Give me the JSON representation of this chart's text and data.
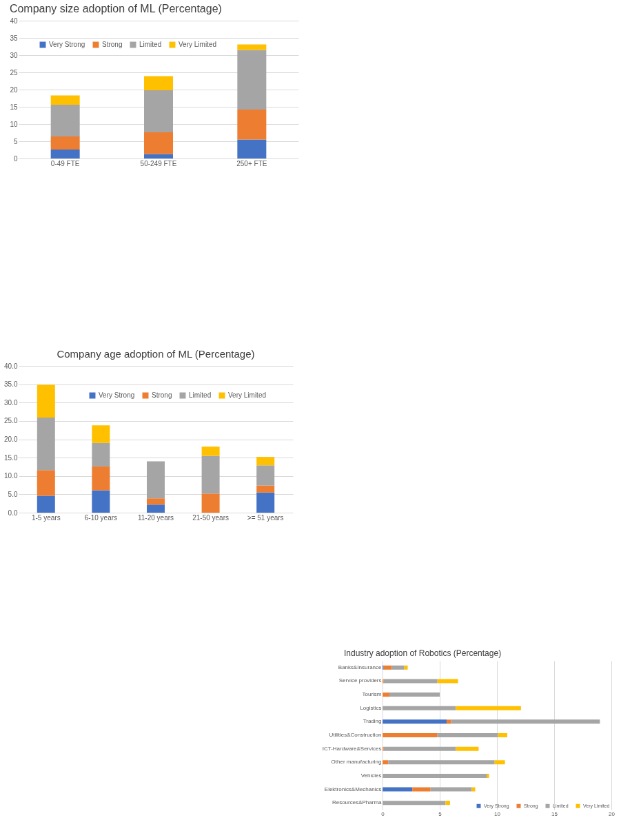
{
  "chart_data": [
    {
      "type": "bar",
      "title": "Company size adoption of ML (Percentage)",
      "categories": [
        "0-49 FTE",
        "50-249 FTE",
        "250+ FTE"
      ],
      "stacked": true,
      "series": [
        {
          "name": "Very Strong",
          "color": "#4472c4",
          "values": [
            2.6,
            1.3,
            5.5
          ]
        },
        {
          "name": "Strong",
          "color": "#ed7d31",
          "values": [
            3.8,
            6.3,
            8.7
          ]
        },
        {
          "name": "Limited",
          "color": "#a5a5a5",
          "values": [
            9.2,
            12.2,
            17.3
          ]
        },
        {
          "name": "Very Limited",
          "color": "#ffc000",
          "values": [
            2.7,
            4.1,
            1.6
          ]
        }
      ],
      "ylim": [
        0,
        40
      ],
      "yticks": [
        0,
        5,
        10,
        15,
        20,
        25,
        30,
        35,
        40
      ],
      "grid": "y",
      "legend": "top left"
    },
    {
      "type": "bar",
      "title": "Company age adoption of ML (Percentage)",
      "categories": [
        "1-5 years",
        "6-10 years",
        "11-20 years",
        "21-50 years",
        ">= 51 years"
      ],
      "stacked": true,
      "series": [
        {
          "name": "Very Strong",
          "color": "#4472c4",
          "values": [
            4.6,
            6.1,
            2.2,
            null,
            5.5
          ]
        },
        {
          "name": "Strong",
          "color": "#ed7d31",
          "values": [
            7.0,
            6.5,
            1.7,
            5.2,
            1.9
          ]
        },
        {
          "name": "Limited",
          "color": "#a5a5a5",
          "values": [
            14.3,
            6.4,
            10.1,
            10.3,
            5.5
          ]
        },
        {
          "name": "Very Limited",
          "color": "#ffc000",
          "values": [
            9.0,
            4.8,
            null,
            2.5,
            2.3
          ]
        }
      ],
      "ylim": [
        0,
        40
      ],
      "yticks": [
        {
          "value": 0,
          "label": "0.0"
        },
        {
          "value": 5,
          "label": "5.0"
        },
        {
          "value": 10,
          "label": "10.0"
        },
        {
          "value": 15,
          "label": "15.0"
        },
        {
          "value": 20,
          "label": "20.0"
        },
        {
          "value": 25,
          "label": "25.0"
        },
        {
          "value": 30,
          "label": "30.0"
        },
        {
          "value": 35,
          "label": "35.0"
        },
        {
          "value": 40,
          "label": "40.0"
        }
      ],
      "grid": "y",
      "legend": "top right"
    },
    {
      "type": "bar",
      "title": "Industry adoption of Robotics (Percentage)",
      "orientation": "horizontal",
      "stacked": true,
      "categories": [
        "Banks&Insurance",
        "Service providers",
        "Tourism",
        "Logistics",
        "Trading",
        "Utilities&Construction",
        "ICT-Hardware&Services",
        "Other manufacturing",
        "Vehicles",
        "Elektronics&Mechanics",
        "Resources&Pharma"
      ],
      "series": [
        {
          "name": "Very Strong",
          "color": "#4472c4",
          "values": [
            0.1,
            null,
            null,
            null,
            5.6,
            null,
            null,
            null,
            null,
            2.6,
            null
          ]
        },
        {
          "name": "Strong",
          "color": "#ed7d31",
          "values": [
            0.7,
            0.1,
            0.6,
            null,
            0.4,
            4.8,
            0.1,
            0.5,
            null,
            1.6,
            null
          ]
        },
        {
          "name": "Limited",
          "color": "#a5a5a5",
          "values": [
            1.1,
            4.7,
            4.4,
            6.4,
            13.0,
            5.3,
            6.3,
            9.3,
            9.1,
            3.6,
            5.5
          ]
        },
        {
          "name": "Very Limited",
          "color": "#ffc000",
          "values": [
            0.3,
            1.8,
            null,
            5.7,
            null,
            0.8,
            2.0,
            0.9,
            0.2,
            0.3,
            0.4
          ]
        }
      ],
      "xlim": [
        0,
        20
      ],
      "xticks": [
        0,
        5,
        10,
        15,
        20
      ],
      "grid": "x",
      "legend": "bottom right"
    }
  ]
}
